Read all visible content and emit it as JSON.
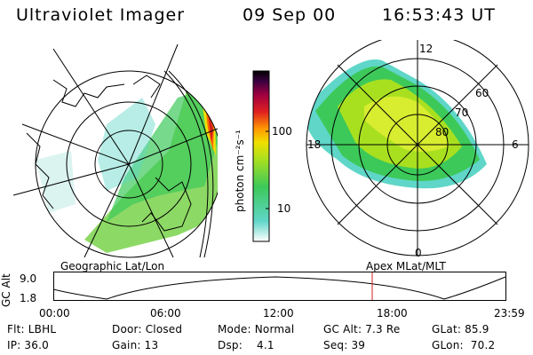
{
  "header": {
    "instrument": "Ultraviolet Imager",
    "date": "09 Sep 00",
    "time": "16:53:43 UT"
  },
  "geo_panel": {
    "caption": "Geographic Lat/Lon"
  },
  "polar_panel": {
    "caption": "Apex MLat/MLT",
    "mlt_labels": {
      "top": "12",
      "right": "6",
      "bottom": "0",
      "left": "18"
    },
    "lat_labels": [
      "60",
      "70",
      "80"
    ]
  },
  "colorbar": {
    "unit": "photon cm⁻²s⁻¹",
    "ticks": [
      "100",
      "10"
    ],
    "colors": [
      "#ffffff",
      "#5fd6c8",
      "#3cc95a",
      "#a8e020",
      "#f0e000",
      "#ff9900",
      "#e02020",
      "#a00040",
      "#3a0040",
      "#000000"
    ]
  },
  "alt_plot": {
    "ylabel": "GC Alt",
    "y_ticks": [
      "9.0",
      "1.8"
    ],
    "x_ticks": [
      "00:00",
      "06:00",
      "12:00",
      "18:00",
      "23:59"
    ],
    "marker_color": "#d02020"
  },
  "status": {
    "flt": "Flt: LBHL",
    "door": "Door: Closed",
    "mode": "Mode: Normal",
    "gc_alt": "GC Alt: 7.3 Re",
    "glat": "GLat:  85.9",
    "ip": "IP: 36.0",
    "gain": "Gain: 13",
    "dsp": "Dsp:    4.1",
    "seq": "Seq: 39",
    "glon": "GLon:  70.2"
  }
}
